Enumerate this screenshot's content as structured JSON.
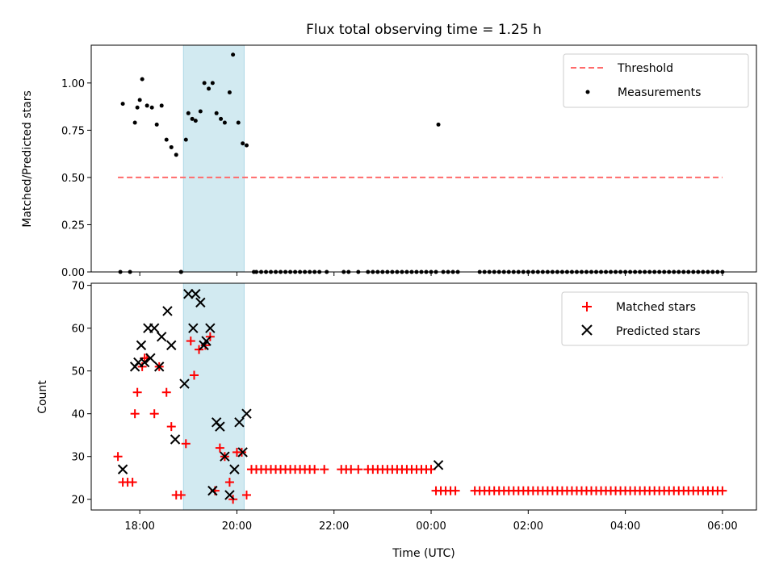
{
  "chart_data": [
    {
      "type": "scatter",
      "title": "Flux total observing time = 1.25 h",
      "xlabel": "",
      "ylabel": "Matched/Predicted stars",
      "xlim": [
        17.0,
        30.7
      ],
      "ylim": [
        0,
        1.2
      ],
      "yticks": [
        0.0,
        0.25,
        0.5,
        0.75,
        1.0
      ],
      "ytick_labels": [
        "0.00",
        "0.25",
        "0.50",
        "0.75",
        "1.00"
      ],
      "highlight_span": {
        "x0": 18.9,
        "x1": 20.15,
        "color": "#add8e6"
      },
      "threshold": {
        "name": "Threshold",
        "y": 0.5,
        "x0": 17.55,
        "x1": 30.0,
        "color": "#ff6b6b"
      },
      "series": [
        {
          "name": "Measurements",
          "color": "#000000",
          "marker": "dot",
          "x": [
            17.6,
            17.65,
            17.8,
            17.9,
            17.95,
            18.0,
            18.05,
            18.15,
            18.25,
            18.35,
            18.45,
            18.55,
            18.65,
            18.75,
            18.85,
            18.95,
            19.0,
            19.08,
            19.15,
            19.25,
            19.33,
            19.42,
            19.5,
            19.58,
            19.67,
            19.75,
            19.85,
            19.92,
            20.03,
            20.12,
            20.2,
            18.85,
            20.35,
            20.4,
            20.5,
            20.6,
            20.7,
            20.8,
            20.9,
            21.0,
            21.1,
            21.2,
            21.3,
            21.4,
            21.5,
            21.6,
            21.7,
            21.85,
            22.2,
            22.3,
            22.5,
            22.7,
            22.8,
            22.9,
            23.0,
            23.1,
            23.2,
            23.3,
            23.4,
            23.5,
            23.6,
            23.7,
            23.8,
            23.9,
            24.0,
            24.1,
            24.15,
            24.25,
            24.35,
            24.45,
            24.55,
            25.0,
            25.1,
            25.2,
            25.3,
            25.4,
            25.5,
            25.6,
            25.7,
            25.8,
            25.9,
            26.0,
            26.1,
            26.2,
            26.3,
            26.4,
            26.5,
            26.6,
            26.7,
            26.8,
            26.9,
            27.0,
            27.1,
            27.2,
            27.3,
            27.4,
            27.5,
            27.6,
            27.7,
            27.8,
            27.9,
            28.0,
            28.1,
            28.2,
            28.3,
            28.4,
            28.5,
            28.6,
            28.7,
            28.8,
            28.9,
            29.0,
            29.1,
            29.2,
            29.3,
            29.4,
            29.5,
            29.6,
            29.7,
            29.8,
            29.9,
            30.0
          ],
          "y": [
            0.0,
            0.89,
            0.0,
            0.79,
            0.87,
            0.91,
            1.02,
            0.88,
            0.87,
            0.78,
            0.88,
            0.7,
            0.66,
            0.62,
            0.0,
            0.7,
            0.84,
            0.81,
            0.8,
            0.85,
            1.0,
            0.97,
            1.0,
            0.84,
            0.81,
            0.79,
            0.95,
            1.15,
            0.79,
            0.68,
            0.67,
            0.0,
            0.0,
            0.0,
            0.0,
            0.0,
            0.0,
            0.0,
            0.0,
            0.0,
            0.0,
            0.0,
            0.0,
            0.0,
            0.0,
            0.0,
            0.0,
            0.0,
            0.0,
            0.0,
            0.0,
            0.0,
            0.0,
            0.0,
            0.0,
            0.0,
            0.0,
            0.0,
            0.0,
            0.0,
            0.0,
            0.0,
            0.0,
            0.0,
            0.0,
            0.0,
            0.78,
            0.0,
            0.0,
            0.0,
            0.0,
            0.0,
            0.0,
            0.0,
            0.0,
            0.0,
            0.0,
            0.0,
            0.0,
            0.0,
            0.0,
            0.0,
            0.0,
            0.0,
            0.0,
            0.0,
            0.0,
            0.0,
            0.0,
            0.0,
            0.0,
            0.0,
            0.0,
            0.0,
            0.0,
            0.0,
            0.0,
            0.0,
            0.0,
            0.0,
            0.0,
            0.0,
            0.0,
            0.0,
            0.0,
            0.0,
            0.0,
            0.0,
            0.0,
            0.0,
            0.0,
            0.0,
            0.0,
            0.0,
            0.0,
            0.0,
            0.0,
            0.0,
            0.0,
            0.0,
            0.0,
            0.0
          ]
        }
      ],
      "legend": [
        "Threshold",
        "Measurements"
      ],
      "legend_position": "top-right"
    },
    {
      "type": "scatter",
      "title": "",
      "xlabel": "Time (UTC)",
      "ylabel": "Count",
      "xlim": [
        17.0,
        30.7
      ],
      "ylim": [
        17.5,
        70.5
      ],
      "yticks": [
        20,
        30,
        40,
        50,
        60,
        70
      ],
      "ytick_labels": [
        "20",
        "30",
        "40",
        "50",
        "60",
        "70"
      ],
      "xticks": [
        18,
        20,
        22,
        24,
        26,
        28,
        30
      ],
      "xtick_labels": [
        "18:00",
        "20:00",
        "22:00",
        "00:00",
        "02:00",
        "04:00",
        "06:00"
      ],
      "highlight_span": {
        "x0": 18.9,
        "x1": 20.15,
        "color": "#add8e6"
      },
      "series": [
        {
          "name": "Matched stars",
          "color": "#ff0000",
          "marker": "plus",
          "x": [
            17.55,
            17.65,
            17.75,
            17.85,
            17.9,
            17.95,
            18.05,
            18.1,
            18.15,
            18.3,
            18.4,
            18.55,
            18.65,
            18.75,
            18.85,
            18.95,
            19.05,
            19.12,
            19.22,
            19.35,
            19.45,
            19.55,
            19.65,
            19.75,
            19.85,
            19.92,
            20.0,
            20.1,
            20.2,
            20.3,
            20.4,
            20.5,
            20.6,
            20.7,
            20.8,
            20.9,
            21.0,
            21.1,
            21.2,
            21.3,
            21.4,
            21.5,
            21.6,
            21.8,
            22.15,
            22.25,
            22.35,
            22.5,
            22.7,
            22.8,
            22.9,
            23.0,
            23.1,
            23.2,
            23.3,
            23.4,
            23.5,
            23.6,
            23.7,
            23.8,
            23.9,
            24.0,
            24.1,
            24.2,
            24.3,
            24.4,
            24.5,
            24.9,
            25.0,
            25.1,
            25.2,
            25.3,
            25.4,
            25.5,
            25.6,
            25.7,
            25.8,
            25.9,
            26.0,
            26.1,
            26.2,
            26.3,
            26.4,
            26.5,
            26.6,
            26.7,
            26.8,
            26.9,
            27.0,
            27.1,
            27.2,
            27.3,
            27.4,
            27.5,
            27.6,
            27.7,
            27.8,
            27.9,
            28.0,
            28.1,
            28.2,
            28.3,
            28.4,
            28.5,
            28.6,
            28.7,
            28.8,
            28.9,
            29.0,
            29.1,
            29.2,
            29.3,
            29.4,
            29.5,
            29.6,
            29.7,
            29.8,
            29.9,
            30.0
          ],
          "y": [
            30,
            24,
            24,
            24,
            40,
            45,
            51,
            53,
            53,
            40,
            51,
            45,
            37,
            21,
            21,
            33,
            57,
            49,
            55,
            56,
            58,
            22,
            32,
            30,
            24,
            20,
            31,
            31,
            21,
            27,
            27,
            27,
            27,
            27,
            27,
            27,
            27,
            27,
            27,
            27,
            27,
            27,
            27,
            27,
            27,
            27,
            27,
            27,
            27,
            27,
            27,
            27,
            27,
            27,
            27,
            27,
            27,
            27,
            27,
            27,
            27,
            27,
            22,
            22,
            22,
            22,
            22,
            22,
            22,
            22,
            22,
            22,
            22,
            22,
            22,
            22,
            22,
            22,
            22,
            22,
            22,
            22,
            22,
            22,
            22,
            22,
            22,
            22,
            22,
            22,
            22,
            22,
            22,
            22,
            22,
            22,
            22,
            22,
            22,
            22,
            22,
            22,
            22,
            22,
            22,
            22,
            22,
            22,
            22,
            22,
            22,
            22,
            22,
            22,
            22,
            22,
            22,
            22,
            22
          ]
        },
        {
          "name": "Predicted stars",
          "color": "#000000",
          "marker": "x",
          "x": [
            17.65,
            17.9,
            17.97,
            18.03,
            18.1,
            18.17,
            18.22,
            18.3,
            18.4,
            18.45,
            18.57,
            18.65,
            18.73,
            18.92,
            19.0,
            19.1,
            19.15,
            19.25,
            19.32,
            19.37,
            19.45,
            19.5,
            19.58,
            19.65,
            19.75,
            19.85,
            19.95,
            20.05,
            20.12,
            20.2,
            24.15
          ],
          "y": [
            27,
            51,
            52,
            56,
            52,
            60,
            53,
            60,
            51,
            58,
            64,
            56,
            34,
            47,
            68,
            60,
            68,
            66,
            56,
            57,
            60,
            22,
            38,
            37,
            30,
            21,
            27,
            38,
            31,
            40,
            28
          ]
        }
      ],
      "legend": [
        "Matched stars",
        "Predicted stars"
      ],
      "legend_position": "top-right"
    }
  ]
}
